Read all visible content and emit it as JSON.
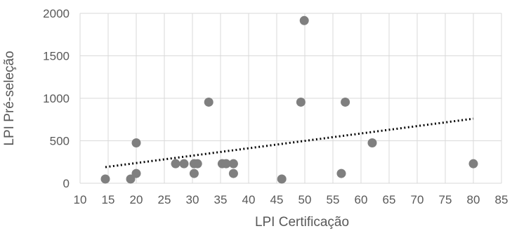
{
  "chart_data": {
    "type": "scatter",
    "xlabel": "LPI Certificação",
    "ylabel": "LPI Pré-seleção",
    "xlim": [
      10,
      85
    ],
    "ylim": [
      0,
      2000
    ],
    "xticks": [
      "10",
      "15",
      "20",
      "25",
      "30",
      "35",
      "40",
      "45",
      "50",
      "55",
      "60",
      "65",
      "70",
      "75",
      "80",
      "85"
    ],
    "yticks": [
      "0",
      "500",
      "1000",
      "1500",
      "2000"
    ],
    "grid": true,
    "legend": "none",
    "marker_color": "#7f7f7f",
    "trendline": {
      "type": "linear",
      "style": "dotted",
      "color": "#000000",
      "from": [
        14.5,
        190
      ],
      "to": [
        80,
        760
      ]
    },
    "points": [
      {
        "x": 14.5,
        "y": 50
      },
      {
        "x": 19,
        "y": 50
      },
      {
        "x": 20,
        "y": 115
      },
      {
        "x": 20,
        "y": 475
      },
      {
        "x": 27,
        "y": 230
      },
      {
        "x": 28.5,
        "y": 230
      },
      {
        "x": 30.3,
        "y": 115
      },
      {
        "x": 30.3,
        "y": 230
      },
      {
        "x": 30.9,
        "y": 230
      },
      {
        "x": 32.9,
        "y": 955
      },
      {
        "x": 35.3,
        "y": 230
      },
      {
        "x": 36,
        "y": 230
      },
      {
        "x": 37.3,
        "y": 115
      },
      {
        "x": 37.3,
        "y": 230
      },
      {
        "x": 45.9,
        "y": 50
      },
      {
        "x": 49.3,
        "y": 955
      },
      {
        "x": 49.9,
        "y": 1915
      },
      {
        "x": 56.5,
        "y": 115
      },
      {
        "x": 57.2,
        "y": 955
      },
      {
        "x": 62,
        "y": 475
      },
      {
        "x": 80,
        "y": 230
      }
    ]
  }
}
